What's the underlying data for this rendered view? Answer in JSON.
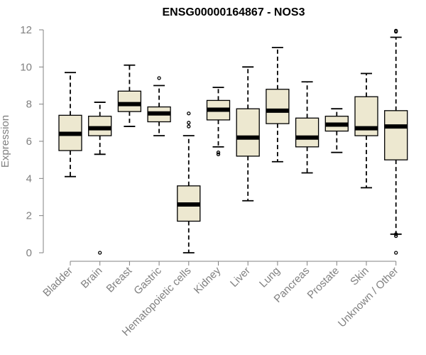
{
  "chart_data": {
    "type": "boxplot",
    "title": "ENSG00000164867 - NOS3",
    "ylabel": "Expression",
    "xlabel": "",
    "ylim": [
      0,
      12
    ],
    "yticks": [
      0,
      2,
      4,
      6,
      8,
      10,
      12
    ],
    "grid": false,
    "box_color": "#ede8d0",
    "categories": [
      "Bladder",
      "Brain",
      "Breast",
      "Gastric",
      "Hematopoietic cells",
      "Kidney",
      "Liver",
      "Lung",
      "Pancreas",
      "Prostate",
      "Skin",
      "Unknown / Other"
    ],
    "boxes": [
      {
        "category": "Bladder",
        "whisker_low": 4.1,
        "q1": 5.5,
        "median": 6.4,
        "q3": 7.4,
        "whisker_high": 9.7,
        "outliers": []
      },
      {
        "category": "Brain",
        "whisker_low": 5.3,
        "q1": 6.3,
        "median": 6.7,
        "q3": 7.35,
        "whisker_high": 8.1,
        "outliers": [
          0.0
        ]
      },
      {
        "category": "Breast",
        "whisker_low": 6.8,
        "q1": 7.6,
        "median": 8.0,
        "q3": 8.7,
        "whisker_high": 10.1,
        "outliers": []
      },
      {
        "category": "Gastric",
        "whisker_low": 6.3,
        "q1": 7.05,
        "median": 7.5,
        "q3": 7.85,
        "whisker_high": 9.0,
        "outliers": [
          9.4
        ]
      },
      {
        "category": "Hematopoietic cells",
        "whisker_low": 0.0,
        "q1": 1.7,
        "median": 2.6,
        "q3": 3.6,
        "whisker_high": 6.3,
        "outliers": [
          6.8,
          7.0,
          7.5
        ]
      },
      {
        "category": "Kidney",
        "whisker_low": 5.7,
        "q1": 7.15,
        "median": 7.7,
        "q3": 8.2,
        "whisker_high": 8.9,
        "outliers": [
          5.4,
          5.3
        ]
      },
      {
        "category": "Liver",
        "whisker_low": 2.8,
        "q1": 5.2,
        "median": 6.2,
        "q3": 7.75,
        "whisker_high": 10.0,
        "outliers": []
      },
      {
        "category": "Lung",
        "whisker_low": 4.9,
        "q1": 6.95,
        "median": 7.65,
        "q3": 8.8,
        "whisker_high": 11.05,
        "outliers": []
      },
      {
        "category": "Pancreas",
        "whisker_low": 4.3,
        "q1": 5.7,
        "median": 6.2,
        "q3": 7.25,
        "whisker_high": 9.2,
        "outliers": []
      },
      {
        "category": "Prostate",
        "whisker_low": 5.4,
        "q1": 6.55,
        "median": 6.9,
        "q3": 7.35,
        "whisker_high": 7.75,
        "outliers": []
      },
      {
        "category": "Skin",
        "whisker_low": 3.5,
        "q1": 6.3,
        "median": 6.7,
        "q3": 8.4,
        "whisker_high": 9.65,
        "outliers": []
      },
      {
        "category": "Unknown / Other",
        "whisker_low": 1.0,
        "q1": 5.0,
        "median": 6.8,
        "q3": 7.65,
        "whisker_high": 11.6,
        "outliers": [
          0.0,
          0.9,
          1.0,
          11.9,
          11.95
        ]
      }
    ]
  }
}
